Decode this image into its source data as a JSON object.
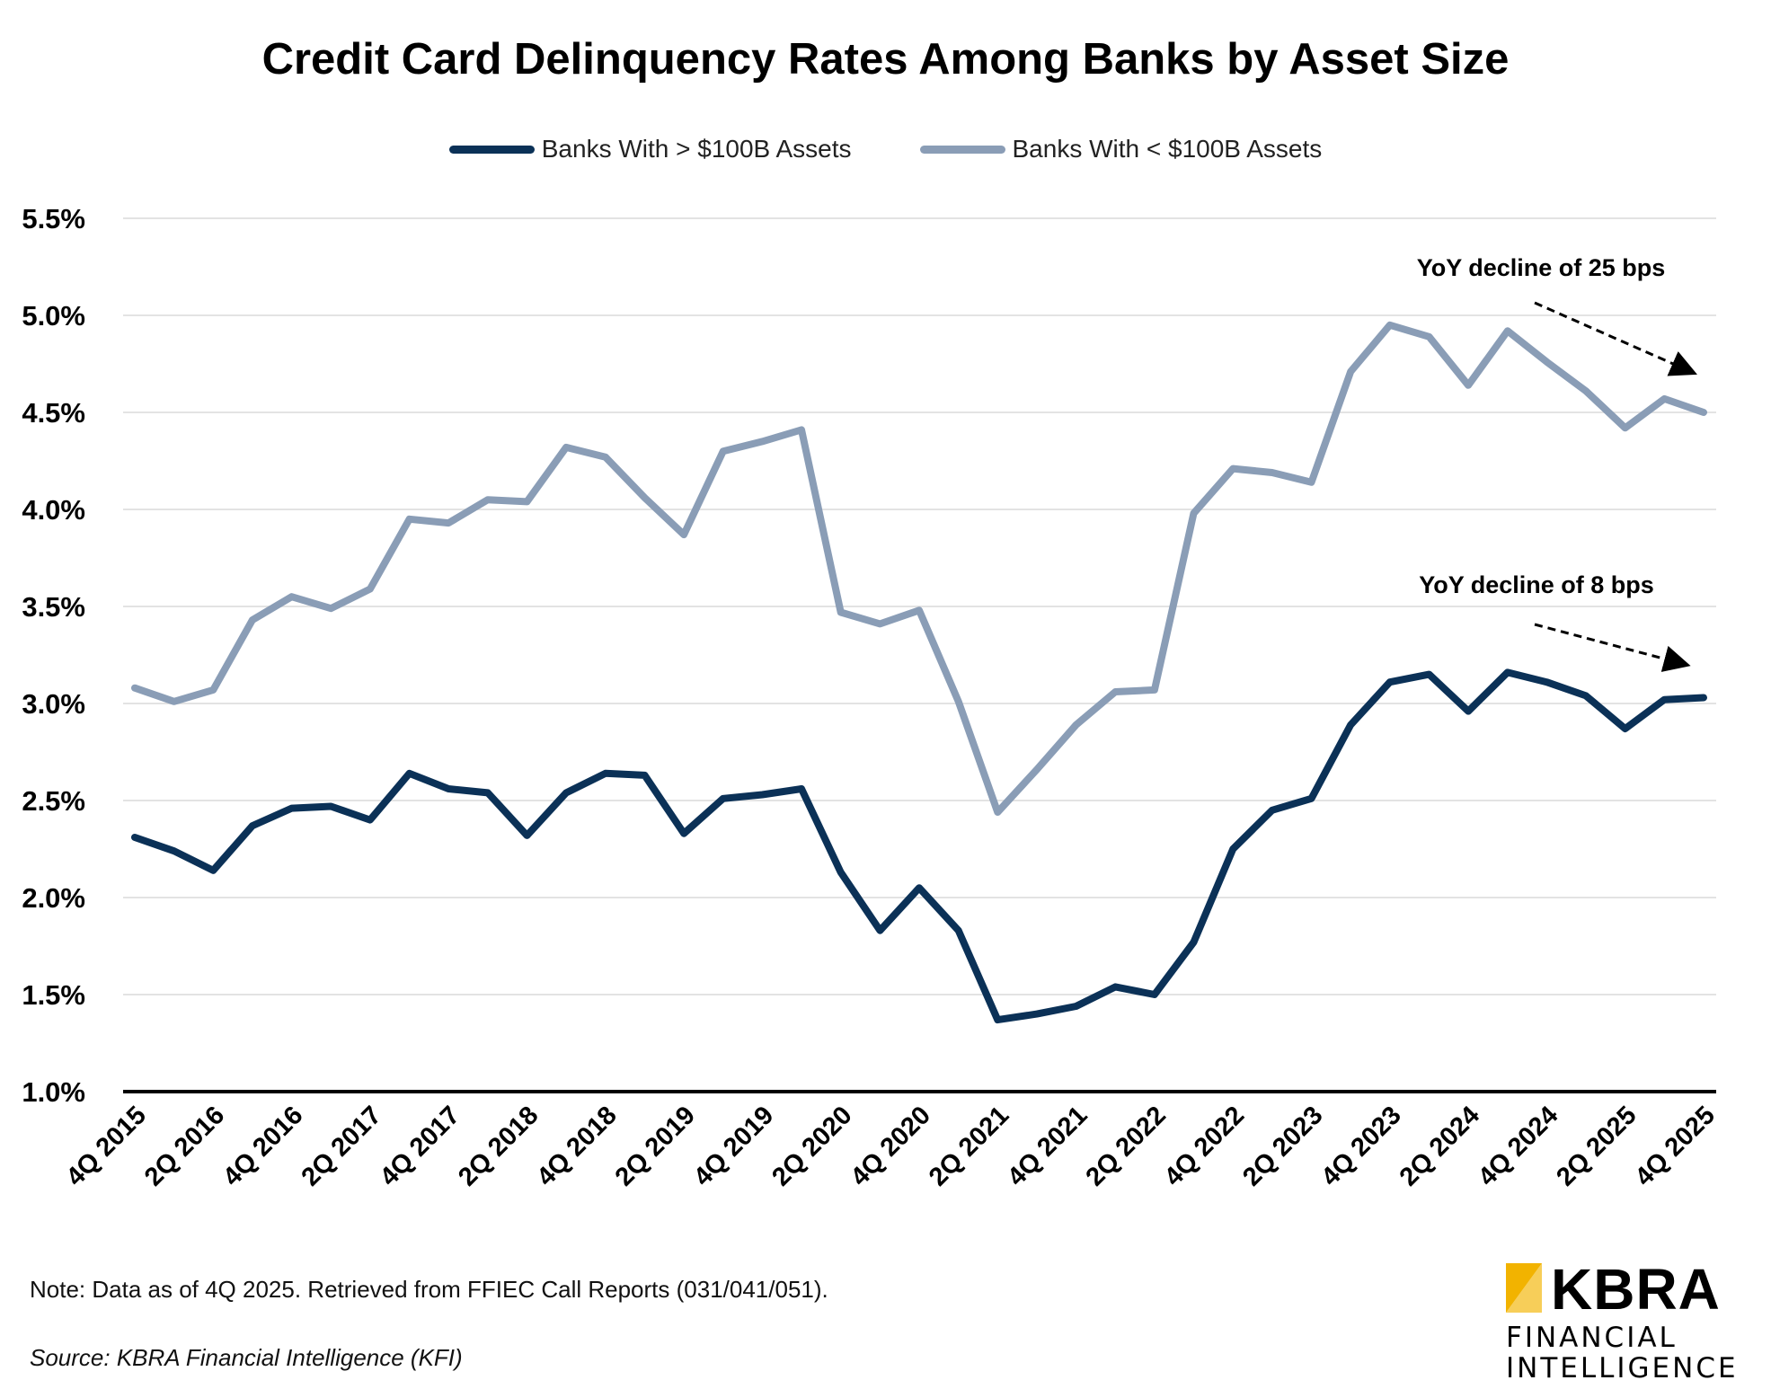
{
  "chart_data": {
    "type": "line",
    "title": "Credit Card Delinquency Rates Among Banks by Asset Size",
    "xlabel": "",
    "ylabel": "",
    "ylim": [
      1.0,
      5.5
    ],
    "yticks": [
      "1.0%",
      "1.5%",
      "2.0%",
      "2.5%",
      "3.0%",
      "3.5%",
      "4.0%",
      "4.5%",
      "5.0%",
      "5.5%"
    ],
    "ytick_values": [
      1.0,
      1.5,
      2.0,
      2.5,
      3.0,
      3.5,
      4.0,
      4.5,
      5.0,
      5.5
    ],
    "grid": "horizontal",
    "legend_position": "top-center",
    "x": [
      "4Q 2015",
      "1Q 2016",
      "2Q 2016",
      "3Q 2016",
      "4Q 2016",
      "1Q 2017",
      "2Q 2017",
      "3Q 2017",
      "4Q 2017",
      "1Q 2018",
      "2Q 2018",
      "3Q 2018",
      "4Q 2018",
      "1Q 2019",
      "2Q 2019",
      "3Q 2019",
      "4Q 2019",
      "1Q 2020",
      "2Q 2020",
      "3Q 2020",
      "4Q 2020",
      "1Q 2021",
      "2Q 2021",
      "3Q 2021",
      "4Q 2021",
      "1Q 2022",
      "2Q 2022",
      "3Q 2022",
      "4Q 2022",
      "1Q 2023",
      "2Q 2023",
      "3Q 2023",
      "4Q 2023",
      "1Q 2024",
      "2Q 2024",
      "3Q 2024",
      "4Q 2024",
      "1Q 2025",
      "2Q 2025",
      "3Q 2025",
      "4Q 2025"
    ],
    "x_tick_labels": [
      "4Q 2015",
      "2Q 2016",
      "4Q 2016",
      "2Q 2017",
      "4Q 2017",
      "2Q 2018",
      "4Q 2018",
      "2Q 2019",
      "4Q 2019",
      "2Q 2020",
      "4Q 2020",
      "2Q 2021",
      "4Q 2021",
      "2Q 2022",
      "4Q 2022",
      "2Q 2023",
      "4Q 2023",
      "2Q 2024",
      "4Q 2024",
      "2Q 2025",
      "4Q 2025"
    ],
    "series": [
      {
        "name": "Banks With > $100B Assets",
        "color": "#0b3157",
        "values": [
          2.31,
          2.24,
          2.14,
          2.37,
          2.46,
          2.47,
          2.4,
          2.64,
          2.56,
          2.54,
          2.32,
          2.54,
          2.64,
          2.63,
          2.33,
          2.51,
          2.53,
          2.56,
          2.13,
          1.83,
          2.05,
          1.83,
          1.37,
          1.4,
          1.44,
          1.54,
          1.5,
          1.77,
          2.25,
          2.45,
          2.51,
          2.89,
          3.11,
          3.15,
          2.96,
          3.16,
          3.11,
          3.04,
          2.87,
          3.02,
          3.03
        ]
      },
      {
        "name": "Banks With < $100B Assets",
        "color": "#8a9db6",
        "values": [
          3.08,
          3.01,
          3.07,
          3.43,
          3.55,
          3.49,
          3.59,
          3.95,
          3.93,
          4.05,
          4.04,
          4.32,
          4.27,
          4.06,
          3.87,
          4.3,
          4.35,
          4.41,
          3.47,
          3.41,
          3.48,
          3.01,
          2.44,
          2.66,
          2.89,
          3.06,
          3.07,
          3.98,
          4.21,
          4.19,
          4.14,
          4.71,
          4.95,
          4.89,
          4.64,
          4.92,
          4.76,
          4.61,
          4.42,
          4.57,
          4.5
        ]
      }
    ],
    "annotations": [
      {
        "text": "YoY decline of 25 bps",
        "series": 1
      },
      {
        "text": "YoY decline of 8 bps",
        "series": 0
      }
    ]
  },
  "footer": {
    "note": "Note: Data as of 4Q 2025. Retrieved from FFIEC Call Reports (031/041/051).",
    "source": "Source: KBRA Financial Intelligence (KFI)"
  },
  "logo": {
    "word": "KBRA",
    "line1": "FINANCIAL",
    "line2": "INTELLIGENCE",
    "accent_color": "#f2b300"
  }
}
